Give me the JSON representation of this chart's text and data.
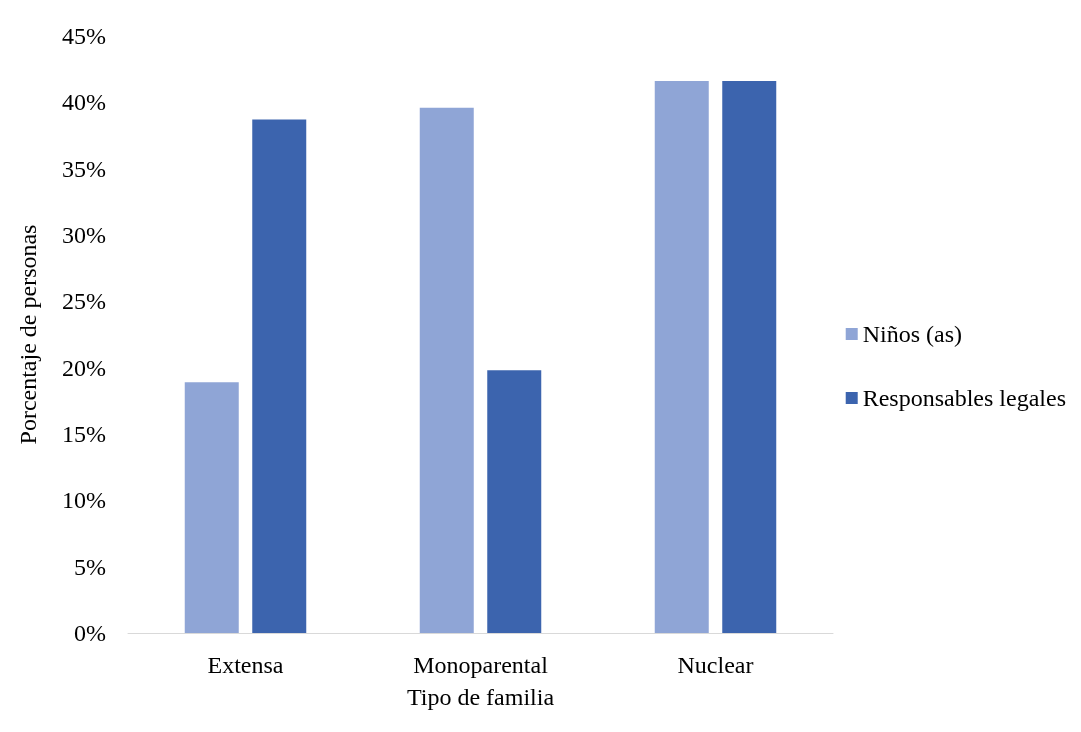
{
  "chart_data": {
    "type": "bar",
    "xlabel": "Tipo de familia",
    "ylabel": "Porcentaje de personas",
    "categories": [
      "Extensa",
      "Monoparental",
      "Nuclear"
    ],
    "series": [
      {
        "name": "Niños (as)",
        "color": "#8fa5d6",
        "values": [
          18.9,
          39.6,
          41.6
        ]
      },
      {
        "name": "Responsables legales",
        "color": "#3c64ae",
        "values": [
          38.7,
          19.8,
          41.6
        ]
      }
    ],
    "ylim": [
      0,
      45
    ],
    "yticks": [
      {
        "value": 0,
        "label": "0%"
      },
      {
        "value": 5,
        "label": "5%"
      },
      {
        "value": 10,
        "label": "10%"
      },
      {
        "value": 15,
        "label": "15%"
      },
      {
        "value": 20,
        "label": "20%"
      },
      {
        "value": 25,
        "label": "25%"
      },
      {
        "value": 30,
        "label": "30%"
      },
      {
        "value": 35,
        "label": "35%"
      },
      {
        "value": 40,
        "label": "40%"
      },
      {
        "value": 45,
        "label": "45%"
      }
    ],
    "grid": false,
    "legend": "right"
  }
}
